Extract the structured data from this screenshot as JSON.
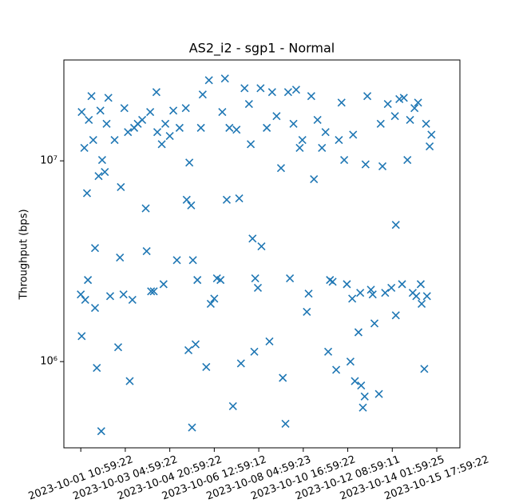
{
  "chart_data": {
    "type": "scatter",
    "title": "AS2_i2 - sgp1 - Normal",
    "y_label": "Throughput (bps)",
    "color": "#1f77b4",
    "log_y": true,
    "xlim": [
      -19,
      426
    ],
    "ylim": [
      372000,
      31800000
    ],
    "xticks": [
      {
        "value": 0,
        "label": "2023-10-01 10:59:22"
      },
      {
        "value": 50,
        "label": "2023-10-03 04:59:22"
      },
      {
        "value": 100,
        "label": "2023-10-04 20:59:22"
      },
      {
        "value": 150,
        "label": "2023-10-06 12:59:12"
      },
      {
        "value": 200,
        "label": "2023-10-08 04:59:23"
      },
      {
        "value": 250,
        "label": "2023-10-10 16:59:22"
      },
      {
        "value": 300,
        "label": "2023-10-12 08:59:11"
      },
      {
        "value": 350,
        "label": "2023-10-14 01:59:25"
      },
      {
        "value": 400,
        "label": "2023-10-15 17:59:22"
      }
    ],
    "yticks": [
      {
        "value": 1000000,
        "label": "10⁶"
      },
      {
        "value": 10000000,
        "label": "10⁷"
      }
    ],
    "x": [
      1,
      4,
      7,
      9,
      12,
      14,
      16,
      18,
      20,
      22,
      24,
      23,
      27,
      29,
      31,
      8,
      0,
      1,
      5,
      16,
      33,
      38,
      42,
      45,
      44,
      48,
      49,
      53,
      55,
      58,
      60,
      64,
      69,
      73,
      74,
      78,
      79,
      82,
      85,
      86,
      91,
      93,
      95,
      100,
      104,
      108,
      111,
      118,
      119,
      121,
      122,
      124,
      125,
      126,
      129,
      131,
      135,
      137,
      141,
      144,
      146,
      150,
      153,
      157,
      159,
      162,
      164,
      167,
      171,
      175,
      178,
      180,
      184,
      189,
      191,
      193,
      195,
      196,
      199,
      202,
      203,
      209,
      212,
      215,
      220,
      225,
      227,
      230,
      233,
      235,
      239,
      242,
      246,
      249,
      254,
      256,
      259,
      262,
      266,
      271,
      275,
      278,
      280,
      283,
      287,
      290,
      293,
      296,
      299,
      303,
      305,
      306,
      308,
      312,
      314,
      315,
      317,
      319,
      320,
      322,
      326,
      328,
      330,
      335,
      337,
      339,
      342,
      345,
      349,
      353,
      354,
      354,
      358,
      361,
      363,
      367,
      370,
      373,
      375,
      377,
      379,
      382,
      383,
      386,
      388,
      389,
      392,
      394
    ],
    "values": [
      17500000,
      11600000,
      6900000,
      16000000,
      21000000,
      12700000,
      3680000,
      930000,
      8400000,
      17800000,
      10100000,
      450000,
      8800000,
      15300000,
      20600000,
      2550000,
      2160000,
      1340000,
      2030000,
      1850000,
      2120000,
      12700000,
      1180000,
      7400000,
      3300000,
      2160000,
      18300000,
      13900000,
      800000,
      2030000,
      14600000,
      15300000,
      16000000,
      5800000,
      3550000,
      17500000,
      2240000,
      2240000,
      22000000,
      13900000,
      12100000,
      2430000,
      15300000,
      13300000,
      17800000,
      3200000,
      14600000,
      18300000,
      6400000,
      1140000,
      9800000,
      6000000,
      470000,
      3200000,
      1220000,
      2550000,
      14600000,
      21400000,
      940000,
      25200000,
      1940000,
      2060000,
      2600000,
      2550000,
      17500000,
      25700000,
      6400000,
      14600000,
      600000,
      14300000,
      6500000,
      980000,
      23000000,
      19200000,
      12100000,
      4100000,
      1120000,
      2600000,
      2330000,
      23000000,
      3750000,
      14600000,
      1260000,
      22000000,
      16700000,
      9200000,
      830000,
      490000,
      22000000,
      2600000,
      15300000,
      22600000,
      11600000,
      12700000,
      1770000,
      2180000,
      21000000,
      8100000,
      16000000,
      11600000,
      13900000,
      1120000,
      2550000,
      2500000,
      910000,
      12700000,
      19500000,
      10100000,
      2430000,
      1000000,
      2060000,
      13500000,
      800000,
      1400000,
      2200000,
      760000,
      590000,
      670000,
      9600000,
      21000000,
      2280000,
      2160000,
      1550000,
      690000,
      15300000,
      9400000,
      2200000,
      19200000,
      2330000,
      16700000,
      1700000,
      4800000,
      20300000,
      2430000,
      20600000,
      10100000,
      16000000,
      2200000,
      18300000,
      2120000,
      19500000,
      2430000,
      1940000,
      920000,
      15300000,
      2120000,
      11800000,
      13500000
    ]
  }
}
